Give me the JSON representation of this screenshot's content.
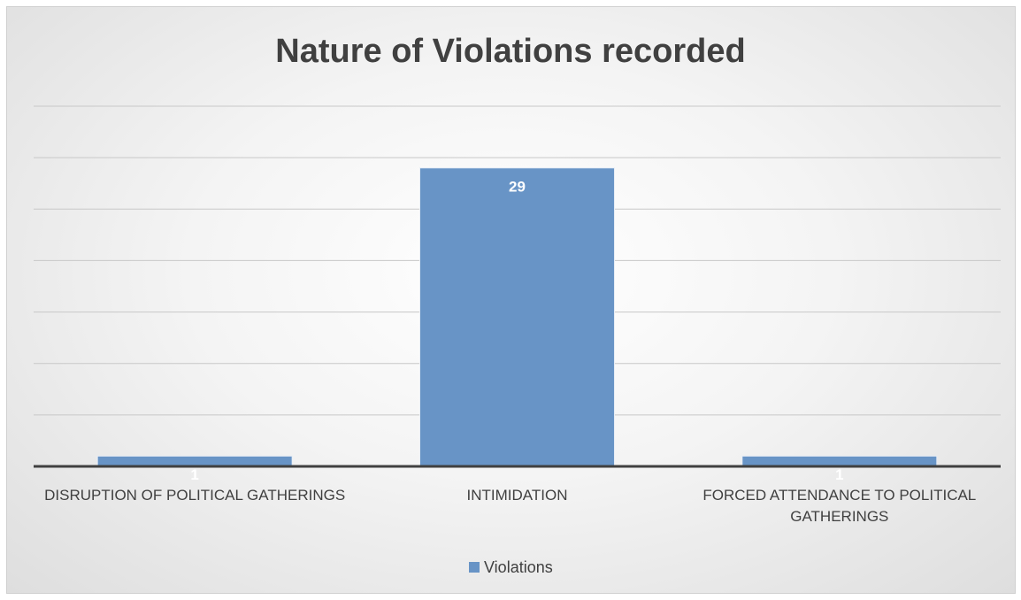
{
  "chart_data": {
    "type": "bar",
    "title": "Nature of Violations recorded",
    "categories": [
      "DISRUPTION OF POLITICAL GATHERINGS",
      "INTIMIDATION",
      "FORCED ATTENDANCE TO POLITICAL GATHERINGS"
    ],
    "series": [
      {
        "name": "Violations",
        "color": "#6894c6",
        "values": [
          1,
          29,
          1
        ]
      }
    ],
    "ylim": [
      0,
      35
    ],
    "yticks": [
      0,
      5,
      10,
      15,
      20,
      25,
      30,
      35
    ],
    "grid": true,
    "legend": "bottom"
  }
}
